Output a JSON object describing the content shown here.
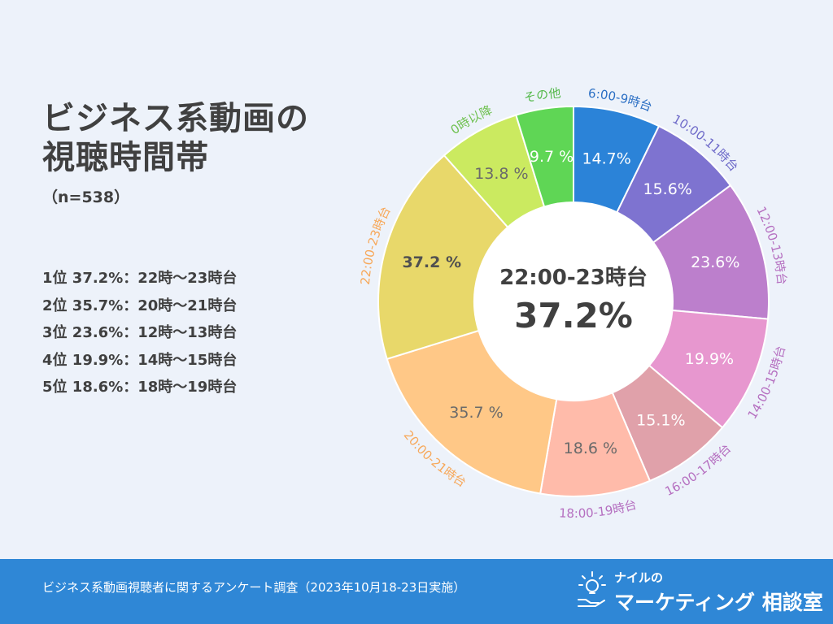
{
  "header": {
    "title_line1": "ビジネス系動画の",
    "title_line2": "視聴時間帯",
    "sample_size": "（n=538）"
  },
  "ranking": [
    "1位 37.2%：22時〜23時台",
    "2位 35.7%：20時〜21時台",
    "3位 23.6%：12時〜13時台",
    "4位 19.9%：14時〜15時台",
    "5位 18.6%：18時〜19時台"
  ],
  "footer": {
    "survey_text": "ビジネス系動画視聴者に関するアンケート調査（2023年10月18-23日実施）",
    "logo_small": "ナイルの",
    "logo_big": "マーケティング 相談室"
  },
  "chart_data": {
    "type": "donut",
    "center_label": "22:00-23時台",
    "center_value": "37.2%",
    "categories": [
      "6:00-9時台",
      "10:00-11時台",
      "12:00-13時台",
      "14:00-15時台",
      "16:00-17時台",
      "18:00-19時台",
      "20:00-21時台",
      "22:00-23時台",
      "0時以降",
      "その他"
    ],
    "values": [
      14.7,
      15.6,
      23.6,
      19.9,
      15.1,
      18.6,
      35.7,
      37.2,
      13.8,
      9.7
    ],
    "value_labels": [
      "14.7%",
      "15.6%",
      "23.6%",
      "19.9%",
      "15.1%",
      "18.6 %",
      "35.7 %",
      "37.2 %",
      "13.8 %",
      "9.7 %"
    ],
    "colors": [
      "#2b83d8",
      "#7e73d0",
      "#bc7fcc",
      "#e797cf",
      "#e0a1aa",
      "#ffbbaa",
      "#ffc887",
      "#e8d86a",
      "#cbea60",
      "#5fd655"
    ],
    "label_colors": [
      "#2b6fc4",
      "#6f6bc9",
      "#b56fc0",
      "#b56fc0",
      "#b56fc0",
      "#b56fc0",
      "#f7a85a",
      "#f7a85a",
      "#6fc150",
      "#54b84a"
    ],
    "value_label_colors": [
      "#ffffff",
      "#ffffff",
      "#ffffff",
      "#ffffff",
      "#ffffff",
      "#6a6a6a",
      "#6a6a6a",
      "#505050",
      "#6a6a6a",
      "#ffffff"
    ]
  }
}
